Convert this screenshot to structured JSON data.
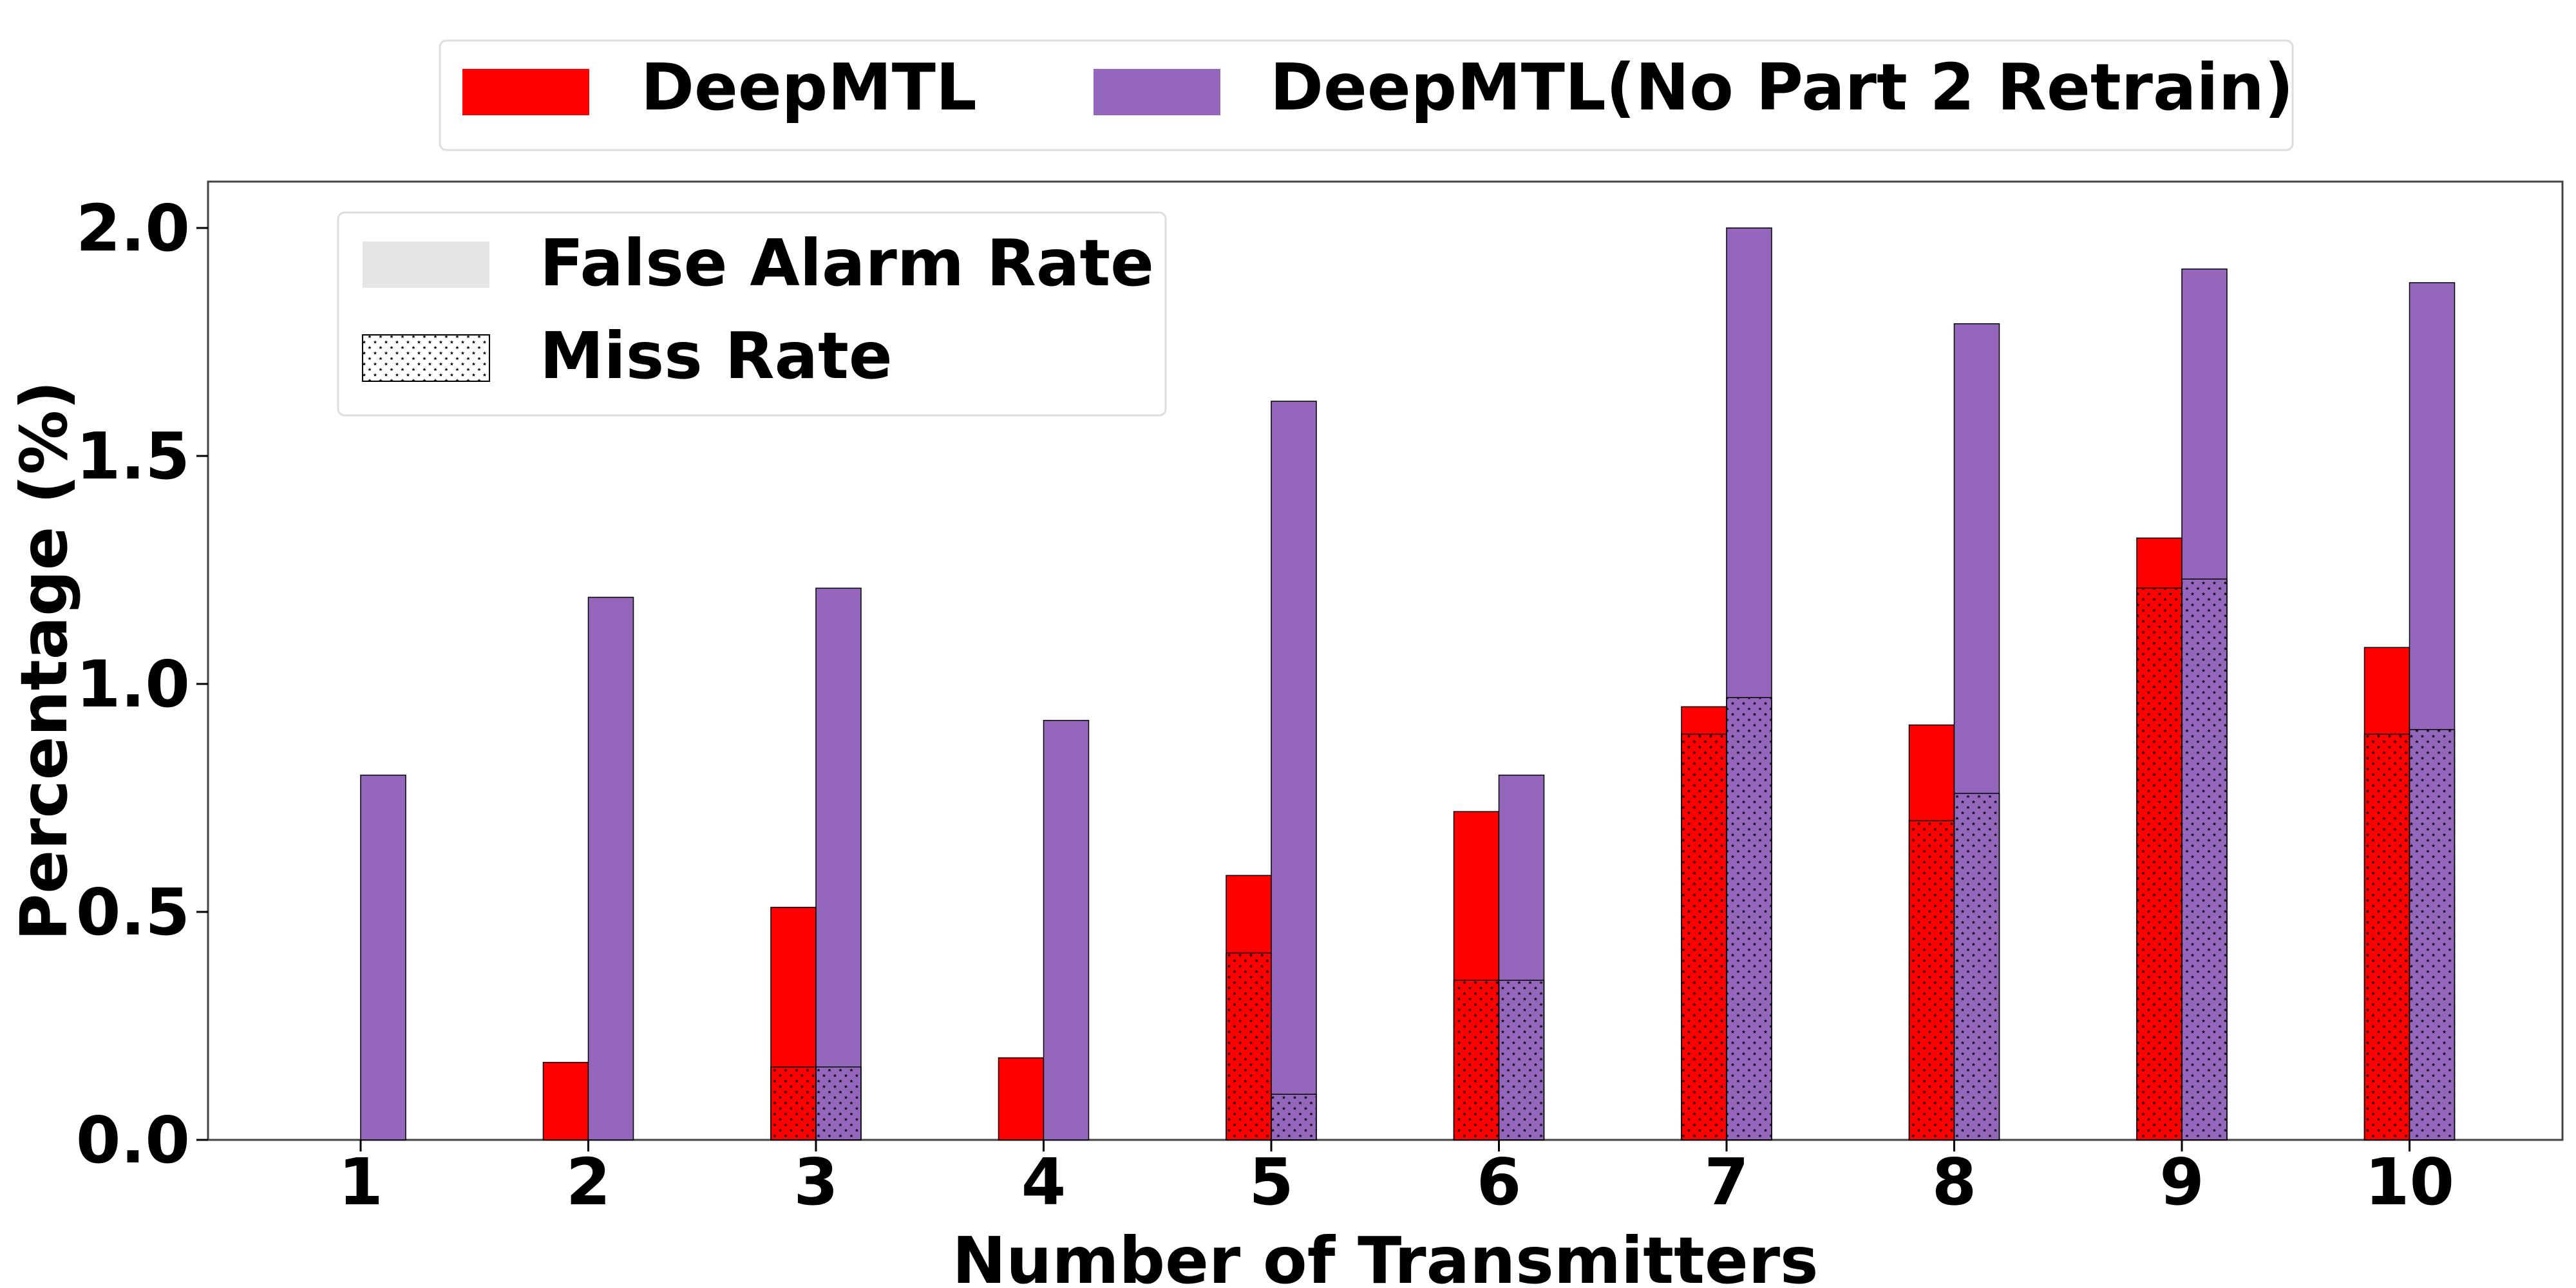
{
  "chart_data": {
    "type": "bar",
    "title": "",
    "xlabel": "Number of Transmitters",
    "ylabel": "Percentage (%)",
    "categories": [
      "1",
      "2",
      "3",
      "4",
      "5",
      "6",
      "7",
      "8",
      "9",
      "10"
    ],
    "ylim": [
      0,
      2.1
    ],
    "yticks": [
      "0.0",
      "0.5",
      "1.0",
      "1.5",
      "2.0"
    ],
    "grid": false,
    "stacked_components": [
      "Miss Rate",
      "False Alarm Rate"
    ],
    "series": [
      {
        "name": "DeepMTL",
        "color": "#ff0000",
        "total": [
          0.0,
          0.17,
          0.51,
          0.18,
          0.58,
          0.72,
          0.95,
          0.91,
          1.32,
          1.08
        ],
        "miss_rate": [
          0.0,
          0.0,
          0.16,
          0.0,
          0.41,
          0.35,
          0.89,
          0.7,
          1.21,
          0.89
        ]
      },
      {
        "name": "DeepMTL(No Part 2 Retrain)",
        "color": "#9467bd",
        "total": [
          0.8,
          1.19,
          1.21,
          0.92,
          1.62,
          0.8,
          2.0,
          1.79,
          1.91,
          1.88
        ],
        "miss_rate": [
          0.0,
          0.0,
          0.16,
          0.0,
          0.1,
          0.35,
          0.97,
          0.76,
          1.23,
          0.9
        ]
      }
    ],
    "legend_series": {
      "placement": "top, outside plot",
      "entries": [
        "DeepMTL",
        "DeepMTL(No Part 2 Retrain)"
      ]
    },
    "legend_components": {
      "placement": "upper-left, inside plot",
      "entries": [
        "False Alarm Rate",
        "Miss Rate"
      ],
      "false_alarm_color": "#e6e6e6"
    }
  }
}
